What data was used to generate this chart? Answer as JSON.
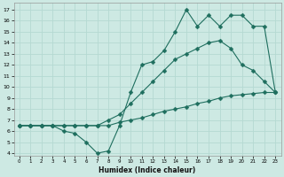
{
  "xlabel": "Humidex (Indice chaleur)",
  "xlim": [
    -0.5,
    23.5
  ],
  "ylim": [
    3.8,
    17.6
  ],
  "xticks": [
    0,
    1,
    2,
    3,
    4,
    5,
    6,
    7,
    8,
    9,
    10,
    11,
    12,
    13,
    14,
    15,
    16,
    17,
    18,
    19,
    20,
    21,
    22,
    23
  ],
  "yticks": [
    4,
    5,
    6,
    7,
    8,
    9,
    10,
    11,
    12,
    13,
    14,
    15,
    16,
    17
  ],
  "bg_color": "#cde9e3",
  "grid_color": "#b5d9d2",
  "line_color": "#1e6e5e",
  "series": [
    {
      "x": [
        0,
        1,
        2,
        3,
        4,
        5,
        6,
        7,
        8,
        9,
        10,
        11,
        12,
        13,
        14,
        15,
        16,
        17,
        18,
        19,
        20,
        21,
        22,
        23
      ],
      "y": [
        6.5,
        6.5,
        6.5,
        6.5,
        6.5,
        6.5,
        6.5,
        6.5,
        6.5,
        6.8,
        7.0,
        7.2,
        7.5,
        7.8,
        8.0,
        8.2,
        8.5,
        8.7,
        9.0,
        9.2,
        9.3,
        9.4,
        9.5,
        9.5
      ],
      "marker": "D",
      "markersize": 2.5,
      "linewidth": 0.8
    },
    {
      "x": [
        0,
        1,
        2,
        3,
        4,
        5,
        6,
        7,
        8,
        9,
        10,
        11,
        12,
        13,
        14,
        15,
        16,
        17,
        18,
        19,
        20,
        21,
        22,
        23
      ],
      "y": [
        6.5,
        6.5,
        6.5,
        6.5,
        6.5,
        6.5,
        6.5,
        6.5,
        7.0,
        7.5,
        8.5,
        9.5,
        10.5,
        11.5,
        12.5,
        13.0,
        13.5,
        14.0,
        14.2,
        13.5,
        12.0,
        11.5,
        10.5,
        9.5
      ],
      "marker": "D",
      "markersize": 2.5,
      "linewidth": 0.8
    },
    {
      "x": [
        0,
        1,
        2,
        3,
        4,
        5,
        6,
        7,
        8,
        9,
        10,
        11,
        12,
        13,
        14,
        15,
        16,
        17,
        18,
        19,
        20,
        21,
        22,
        23
      ],
      "y": [
        6.5,
        6.5,
        6.5,
        6.5,
        6.0,
        5.8,
        5.0,
        4.0,
        4.2,
        6.5,
        9.5,
        12.0,
        12.3,
        13.3,
        15.0,
        17.0,
        15.5,
        16.5,
        15.5,
        16.5,
        16.5,
        15.5,
        15.5,
        9.5
      ],
      "marker": "D",
      "markersize": 2.5,
      "linewidth": 0.8
    }
  ]
}
